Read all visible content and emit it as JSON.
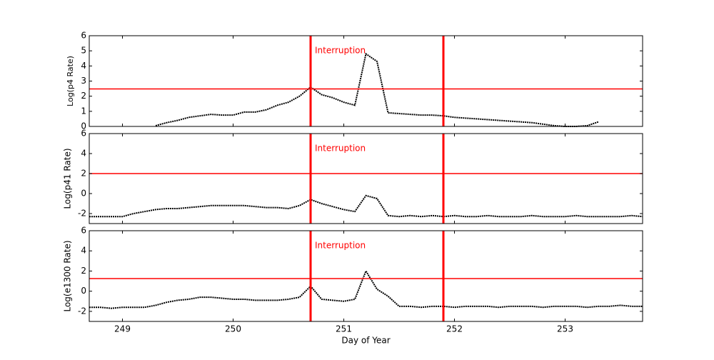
{
  "chart_data": [
    {
      "type": "line",
      "ylabel": "Log(p4 Rate)",
      "x": [
        248.7,
        248.8,
        248.9,
        249.0,
        249.1,
        249.2,
        249.3,
        249.4,
        249.5,
        249.6,
        249.7,
        249.8,
        249.9,
        250.0,
        250.1,
        250.2,
        250.3,
        250.4,
        250.5,
        250.6,
        250.7,
        250.8,
        250.9,
        251.0,
        251.1,
        251.2,
        251.3,
        251.4,
        251.5,
        251.6,
        251.7,
        251.8,
        251.9,
        252.0,
        252.1,
        252.2,
        252.3,
        252.4,
        252.5,
        252.6,
        252.7,
        252.8,
        252.9,
        253.0,
        253.1,
        253.2,
        253.3,
        253.4,
        253.5,
        253.6,
        253.7
      ],
      "series": [
        {
          "color": "#000000",
          "values": [
            null,
            null,
            null,
            null,
            null,
            null,
            0.05,
            0.25,
            0.4,
            0.6,
            0.7,
            0.8,
            0.75,
            0.75,
            0.95,
            0.95,
            1.1,
            1.4,
            1.6,
            2.0,
            2.6,
            2.1,
            1.9,
            1.6,
            1.4,
            4.8,
            4.3,
            0.9,
            0.85,
            0.8,
            0.75,
            0.75,
            0.7,
            0.6,
            0.55,
            0.5,
            0.45,
            0.4,
            0.35,
            0.3,
            0.25,
            0.15,
            0.05,
            0.0,
            0.0,
            0.05,
            0.3,
            null,
            null,
            null,
            null
          ]
        }
      ],
      "xlim": [
        248.7,
        253.7
      ],
      "xticks": [
        249,
        250,
        251,
        252,
        253
      ],
      "ylim": [
        0,
        6
      ],
      "yticks": [
        0,
        1,
        2,
        3,
        4,
        5,
        6
      ],
      "hline": 2.48,
      "vlines": [
        250.7,
        251.9
      ],
      "line_color": "#ff0000",
      "annotation": "Interruption"
    },
    {
      "type": "line",
      "ylabel": "Log(p41 Rate)",
      "x": [
        248.7,
        248.8,
        248.9,
        249.0,
        249.1,
        249.2,
        249.3,
        249.4,
        249.5,
        249.6,
        249.7,
        249.8,
        249.9,
        250.0,
        250.1,
        250.2,
        250.3,
        250.4,
        250.5,
        250.6,
        250.7,
        250.8,
        250.9,
        251.0,
        251.1,
        251.2,
        251.3,
        251.4,
        251.5,
        251.6,
        251.7,
        251.8,
        251.9,
        252.0,
        252.1,
        252.2,
        252.3,
        252.4,
        252.5,
        252.6,
        252.7,
        252.8,
        252.9,
        253.0,
        253.1,
        253.2,
        253.3,
        253.4,
        253.5,
        253.6,
        253.7
      ],
      "series": [
        {
          "color": "#000000",
          "values": [
            -2.3,
            -2.3,
            -2.3,
            -2.3,
            -2.0,
            -1.8,
            -1.6,
            -1.5,
            -1.5,
            -1.4,
            -1.3,
            -1.2,
            -1.2,
            -1.2,
            -1.2,
            -1.3,
            -1.4,
            -1.4,
            -1.5,
            -1.2,
            -0.6,
            -1.0,
            -1.3,
            -1.6,
            -1.8,
            -0.2,
            -0.5,
            -2.2,
            -2.3,
            -2.2,
            -2.3,
            -2.2,
            -2.3,
            -2.2,
            -2.3,
            -2.3,
            -2.2,
            -2.3,
            -2.3,
            -2.3,
            -2.2,
            -2.3,
            -2.3,
            -2.3,
            -2.2,
            -2.3,
            -2.3,
            -2.3,
            -2.3,
            -2.2,
            -2.3
          ]
        }
      ],
      "xlim": [
        248.7,
        253.7
      ],
      "xticks": [
        249,
        250,
        251,
        252,
        253
      ],
      "ylim": [
        -3,
        6
      ],
      "yticks": [
        -2,
        0,
        2,
        4,
        6
      ],
      "hline": 2.0,
      "vlines": [
        250.7,
        251.9
      ],
      "line_color": "#ff0000",
      "annotation": "Interruption"
    },
    {
      "type": "line",
      "ylabel": "Log(e1300 Rate)",
      "xlabel": "Day of Year",
      "x": [
        248.7,
        248.8,
        248.9,
        249.0,
        249.1,
        249.2,
        249.3,
        249.4,
        249.5,
        249.6,
        249.7,
        249.8,
        249.9,
        250.0,
        250.1,
        250.2,
        250.3,
        250.4,
        250.5,
        250.6,
        250.7,
        250.8,
        250.9,
        251.0,
        251.1,
        251.2,
        251.3,
        251.4,
        251.5,
        251.6,
        251.7,
        251.8,
        251.9,
        252.0,
        252.1,
        252.2,
        252.3,
        252.4,
        252.5,
        252.6,
        252.7,
        252.8,
        252.9,
        253.0,
        253.1,
        253.2,
        253.3,
        253.4,
        253.5,
        253.6,
        253.7
      ],
      "series": [
        {
          "color": "#000000",
          "values": [
            -1.6,
            -1.6,
            -1.7,
            -1.6,
            -1.6,
            -1.6,
            -1.4,
            -1.1,
            -0.9,
            -0.8,
            -0.6,
            -0.6,
            -0.7,
            -0.8,
            -0.8,
            -0.9,
            -0.9,
            -0.9,
            -0.8,
            -0.6,
            0.5,
            -0.8,
            -0.9,
            -1.0,
            -0.8,
            2.0,
            0.2,
            -0.5,
            -1.5,
            -1.5,
            -1.6,
            -1.5,
            -1.5,
            -1.6,
            -1.5,
            -1.5,
            -1.5,
            -1.6,
            -1.5,
            -1.5,
            -1.5,
            -1.6,
            -1.5,
            -1.5,
            -1.5,
            -1.6,
            -1.5,
            -1.5,
            -1.4,
            -1.5,
            -1.5
          ]
        }
      ],
      "xlim": [
        248.7,
        253.7
      ],
      "xticks": [
        249,
        250,
        251,
        252,
        253
      ],
      "ylim": [
        -3,
        6
      ],
      "yticks": [
        -2,
        0,
        2,
        4,
        6
      ],
      "hline": 1.25,
      "vlines": [
        250.7,
        251.9
      ],
      "line_color": "#ff0000",
      "annotation": "Interruption"
    }
  ]
}
